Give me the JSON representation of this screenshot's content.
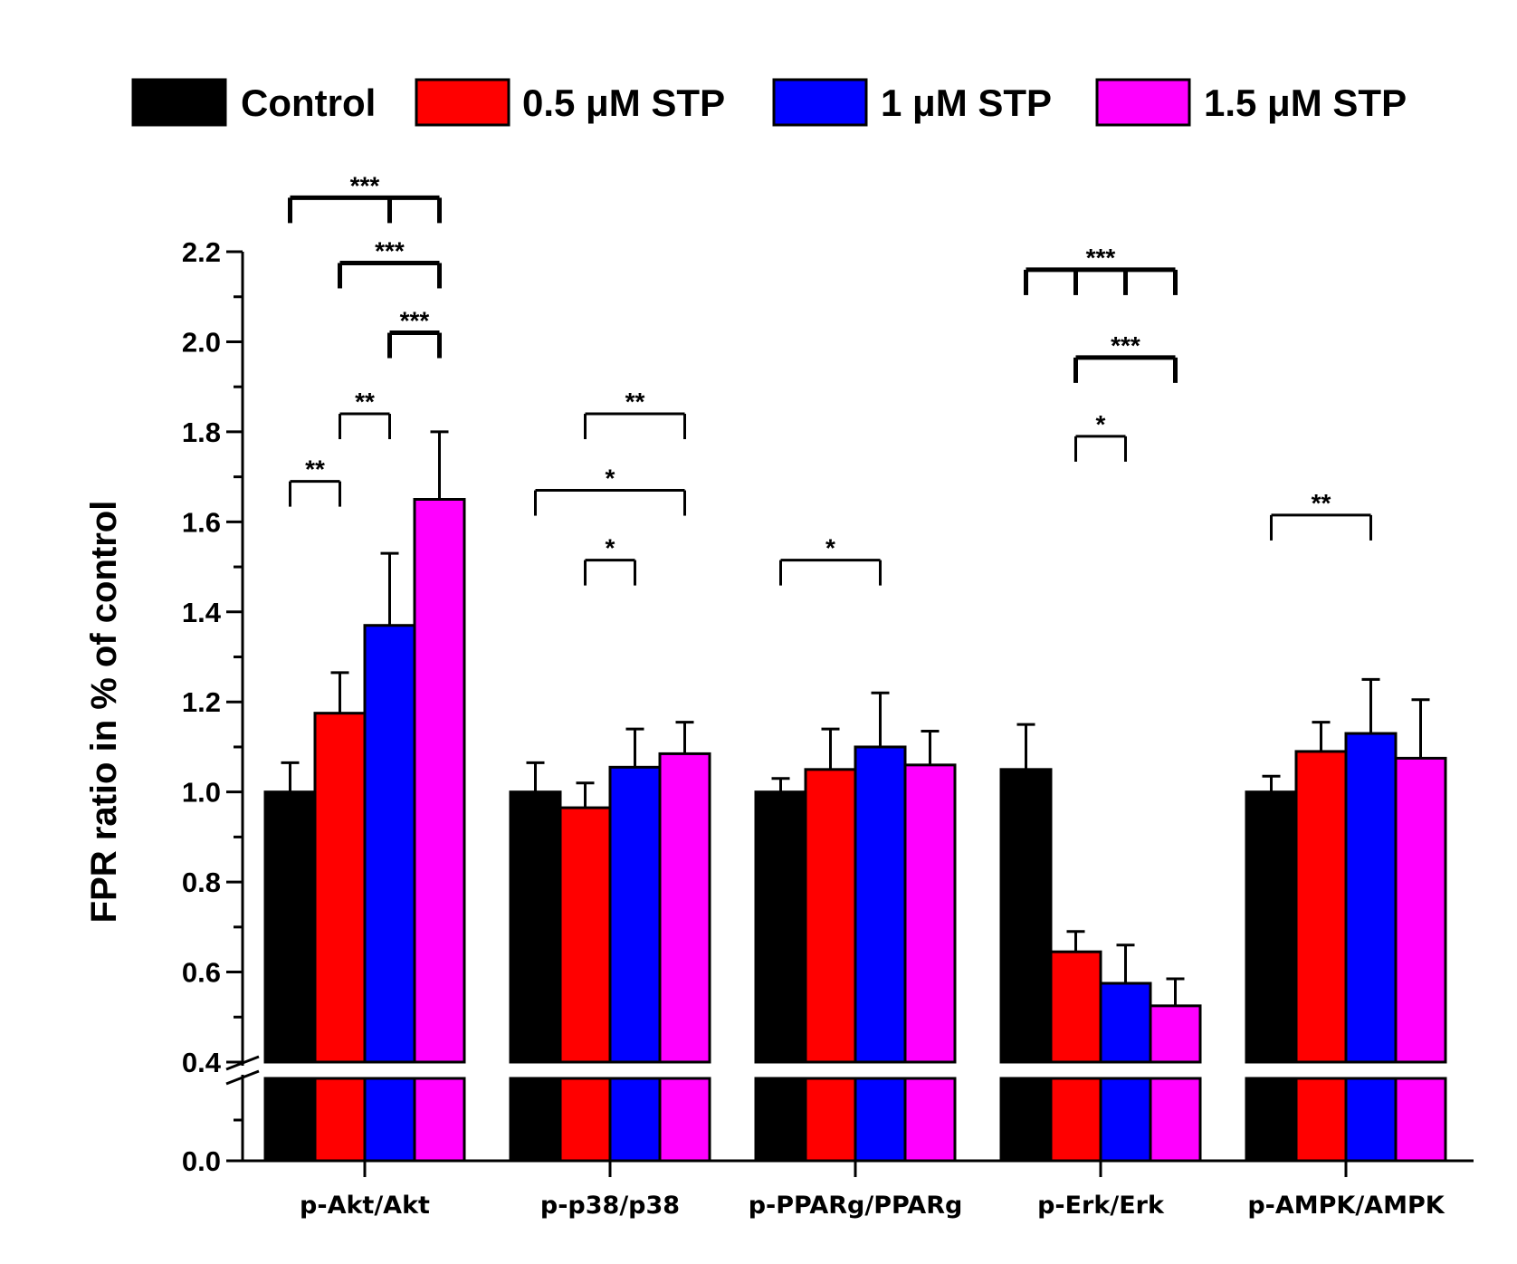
{
  "chart_data": {
    "type": "bar",
    "title": "",
    "xlabel": "",
    "ylabel": "FPR ratio in % of control",
    "ylim": [
      0,
      2.2
    ],
    "y_axis_break": [
      0.4,
      0.4
    ],
    "yticks": [
      "0.0",
      "0.4",
      "0.6",
      "0.8",
      "1.0",
      "1.2",
      "1.4",
      "1.6",
      "1.8",
      "2.0",
      "2.2"
    ],
    "legend_position": "top",
    "categories": [
      "p-Akt/Akt",
      "p-p38/p38",
      "p-PPARg/PPARg",
      "p-Erk/Erk",
      "p-AMPK/AMPK"
    ],
    "series": [
      {
        "name": "Control",
        "color": "#000000",
        "values": [
          1.0,
          1.0,
          1.0,
          1.05,
          1.0
        ],
        "errors": [
          0.065,
          0.065,
          0.03,
          0.1,
          0.035
        ]
      },
      {
        "name": "0.5 μM STP",
        "color": "#ff0000",
        "values": [
          1.175,
          0.965,
          1.05,
          0.645,
          1.09
        ],
        "errors": [
          0.09,
          0.055,
          0.09,
          0.045,
          0.065
        ]
      },
      {
        "name": "1 μM STP",
        "color": "#0000ff",
        "values": [
          1.37,
          1.055,
          1.1,
          0.575,
          1.13
        ],
        "errors": [
          0.16,
          0.085,
          0.12,
          0.085,
          0.12
        ]
      },
      {
        "name": "1.5 μM STP",
        "color": "#ff00ff",
        "values": [
          1.65,
          1.085,
          1.06,
          0.525,
          1.075
        ],
        "errors": [
          0.15,
          0.07,
          0.075,
          0.06,
          0.13
        ]
      }
    ],
    "significance": [
      {
        "category": 0,
        "bars": [
          0,
          1
        ],
        "label": "**",
        "level": 1.69
      },
      {
        "category": 0,
        "bars": [
          1,
          2
        ],
        "label": "**",
        "level": 1.84
      },
      {
        "category": 0,
        "bars": [
          2,
          3
        ],
        "label": "***",
        "level": 2.02
      },
      {
        "category": 0,
        "bars": [
          1,
          3
        ],
        "label": "***",
        "level": 2.175
      },
      {
        "category": 0,
        "bars": [
          0,
          2,
          3
        ],
        "label": "***",
        "level": 2.32
      },
      {
        "category": 1,
        "bars": [
          1,
          2
        ],
        "label": "*",
        "level": 1.515
      },
      {
        "category": 1,
        "bars": [
          0,
          3
        ],
        "label": "*",
        "level": 1.67
      },
      {
        "category": 1,
        "bars": [
          1,
          3
        ],
        "label": "**",
        "level": 1.84
      },
      {
        "category": 2,
        "bars": [
          0,
          2
        ],
        "label": "*",
        "level": 1.515
      },
      {
        "category": 3,
        "bars": [
          1,
          2
        ],
        "label": "*",
        "level": 1.79
      },
      {
        "category": 3,
        "bars": [
          1,
          3
        ],
        "label": "***",
        "level": 1.965
      },
      {
        "category": 3,
        "bars": [
          0,
          1,
          2,
          3
        ],
        "label": "***",
        "level": 2.16
      },
      {
        "category": 4,
        "bars": [
          0,
          2
        ],
        "label": "**",
        "level": 1.615
      }
    ]
  }
}
